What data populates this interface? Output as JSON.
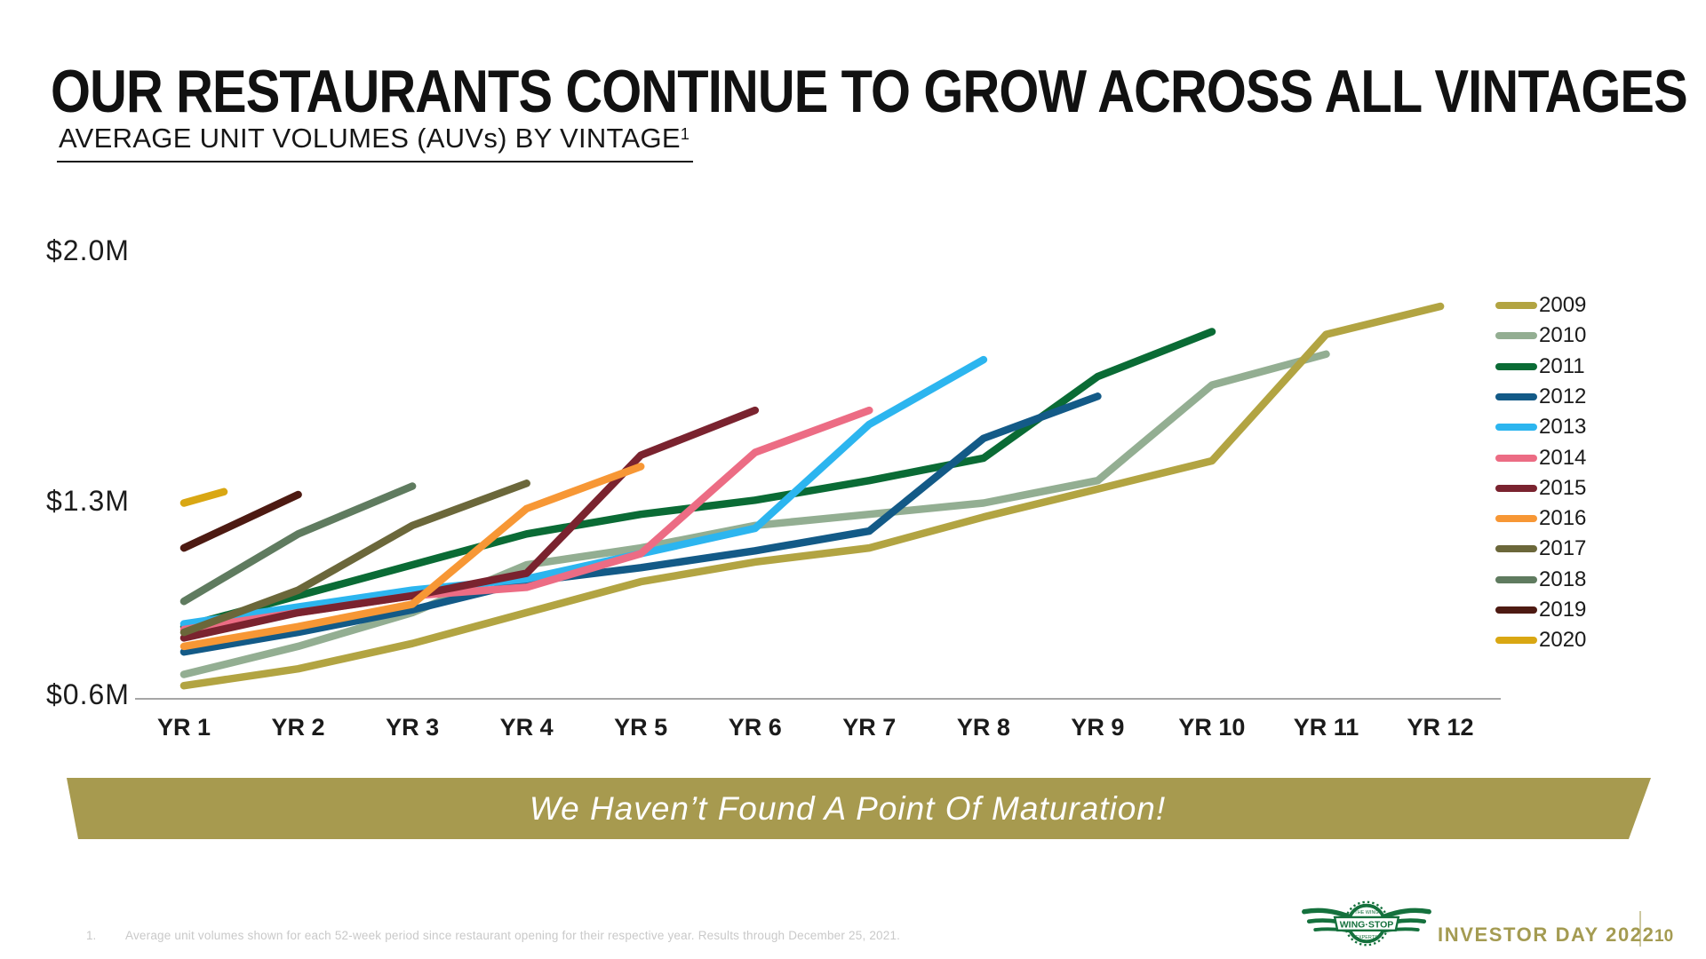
{
  "slide": {
    "title": "OUR RESTAURANTS CONTINUE TO GROW ACROSS ALL VINTAGES",
    "subtitle": "AVERAGE UNIT VOLUMES (AUVs) BY VINTAGE",
    "subtitle_sup": "1",
    "banner_text": "We Haven’t Found A Point Of Maturation!",
    "footnote_index": "1.",
    "footnote": "Average unit volumes shown for each 52-week period since restaurant opening for their respective year. Results through December 25, 2021.",
    "footer": {
      "logo_top": "THE WING",
      "logo_banner": "WING·STOP",
      "logo_bottom": "EXPERTS",
      "event": "INVESTOR DAY 2022",
      "page": "10"
    }
  },
  "colors": {
    "banner_bg": "#a79a4f",
    "footer_olive": "#a49b52",
    "logo_green": "#15713d",
    "axis_line": "#a6a6a6",
    "footnote_gray": "#c9c9c9"
  },
  "chart_data": {
    "type": "line",
    "title": "AVERAGE UNIT VOLUMES (AUVs) BY VINTAGE",
    "unit": "$M",
    "ylim": [
      0.6,
      2.0
    ],
    "y_ticks": [
      "$2.0M",
      "$1.3M",
      "$0.6M"
    ],
    "y_tick_values": [
      2.0,
      1.3,
      0.6
    ],
    "grid": false,
    "legend_position": "right",
    "x_categories": [
      "YR 1",
      "YR 2",
      "YR 3",
      "YR 4",
      "YR 5",
      "YR 6",
      "YR 7",
      "YR 8",
      "YR 9",
      "YR 10",
      "YR 11",
      "YR 12"
    ],
    "series": [
      {
        "name": "2009",
        "color": "#b2a442",
        "values": [
          0.65,
          0.71,
          0.8,
          0.91,
          1.02,
          1.09,
          1.14,
          1.25,
          1.35,
          1.45,
          1.9,
          2.0
        ]
      },
      {
        "name": "2010",
        "color": "#93ae92",
        "values": [
          0.69,
          0.79,
          0.91,
          1.08,
          1.14,
          1.22,
          1.26,
          1.3,
          1.38,
          1.72,
          1.83
        ]
      },
      {
        "name": "2011",
        "color": "#0a6b35",
        "values": [
          0.86,
          0.97,
          1.08,
          1.19,
          1.26,
          1.31,
          1.38,
          1.46,
          1.75,
          1.91
        ]
      },
      {
        "name": "2012",
        "color": "#135a87",
        "values": [
          0.77,
          0.84,
          0.92,
          1.02,
          1.07,
          1.13,
          1.2,
          1.53,
          1.68
        ]
      },
      {
        "name": "2013",
        "color": "#2cb5ef",
        "values": [
          0.87,
          0.93,
          0.99,
          1.03,
          1.12,
          1.21,
          1.58,
          1.81
        ]
      },
      {
        "name": "2014",
        "color": "#ec6c84",
        "values": [
          0.85,
          0.91,
          0.97,
          1.0,
          1.12,
          1.48,
          1.63
        ]
      },
      {
        "name": "2015",
        "color": "#7a232f",
        "values": [
          0.82,
          0.91,
          0.97,
          1.05,
          1.47,
          1.63
        ]
      },
      {
        "name": "2016",
        "color": "#f79735",
        "values": [
          0.79,
          0.86,
          0.94,
          1.28,
          1.43
        ]
      },
      {
        "name": "2017",
        "color": "#6b673a",
        "values": [
          0.84,
          0.99,
          1.22,
          1.37
        ]
      },
      {
        "name": "2018",
        "color": "#5f7b5f",
        "values": [
          0.95,
          1.19,
          1.36
        ]
      },
      {
        "name": "2019",
        "color": "#4d1a12",
        "values": [
          1.14,
          1.33
        ]
      },
      {
        "name": "2020",
        "color": "#d9a713",
        "values": [
          1.3,
          1.34
        ],
        "yr_positions": [
          1,
          1.35
        ]
      }
    ]
  }
}
